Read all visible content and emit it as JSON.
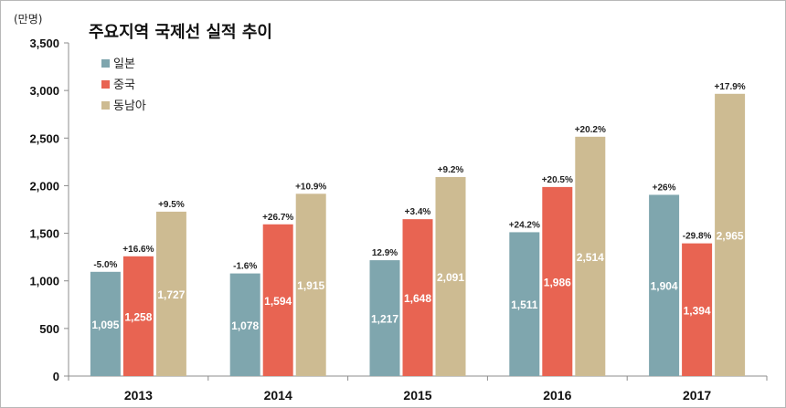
{
  "chart_data": {
    "type": "bar",
    "title": "주요지역 국제선 실적 추이",
    "ylabel": "(만명)",
    "xlabel": "",
    "ylim": [
      0,
      3500
    ],
    "yticks": [
      "0",
      "500",
      "1,000",
      "1,500",
      "2,000",
      "2,500",
      "3,000",
      "3,500"
    ],
    "categories": [
      "2013",
      "2014",
      "2015",
      "2016",
      "2017"
    ],
    "legend_position": "top-left",
    "grid": false,
    "series": [
      {
        "name": "일본",
        "color": "#7fa6ae",
        "values": [
          1095,
          1078,
          1217,
          1511,
          1904
        ],
        "labels": [
          "1,095",
          "1,078",
          "1,217",
          "1,511",
          "1,904"
        ],
        "growth": [
          "-5.0%",
          "-1.6%",
          "12.9%",
          "+24.2%",
          "+26%"
        ]
      },
      {
        "name": "중국",
        "color": "#e86452",
        "values": [
          1258,
          1594,
          1648,
          1986,
          1394
        ],
        "labels": [
          "1,258",
          "1,594",
          "1,648",
          "1,986",
          "1,394"
        ],
        "growth": [
          "+16.6%",
          "+26.7%",
          "+3.4%",
          "+20.5%",
          "-29.8%"
        ]
      },
      {
        "name": "동남아",
        "color": "#cdbb92",
        "values": [
          1727,
          1915,
          2091,
          2514,
          2965
        ],
        "labels": [
          "1,727",
          "1,915",
          "2,091",
          "2,514",
          "2,965"
        ],
        "growth": [
          "+9.5%",
          "+10.9%",
          "+9.2%",
          "+20.2%",
          "+17.9%"
        ]
      }
    ]
  }
}
